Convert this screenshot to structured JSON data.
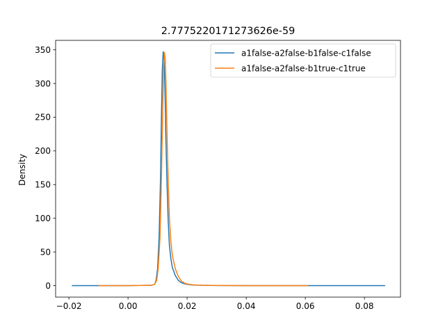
{
  "chart_data": {
    "type": "line",
    "title": "2.7775220171273626e-59",
    "xlabel": "",
    "ylabel": "Density",
    "xlim": [
      -0.0245,
      0.0922
    ],
    "ylim": [
      -17,
      364
    ],
    "xticks": [
      {
        "value": -0.02,
        "label": "−0.02"
      },
      {
        "value": 0.0,
        "label": "0.00"
      },
      {
        "value": 0.02,
        "label": "0.02"
      },
      {
        "value": 0.04,
        "label": "0.04"
      },
      {
        "value": 0.06,
        "label": "0.06"
      },
      {
        "value": 0.08,
        "label": "0.08"
      }
    ],
    "yticks": [
      {
        "value": 0,
        "label": "0"
      },
      {
        "value": 50,
        "label": "50"
      },
      {
        "value": 100,
        "label": "100"
      },
      {
        "value": 150,
        "label": "150"
      },
      {
        "value": 200,
        "label": "200"
      },
      {
        "value": 250,
        "label": "250"
      },
      {
        "value": 300,
        "label": "300"
      },
      {
        "value": 350,
        "label": "350"
      }
    ],
    "grid": false,
    "legend_position": "upper-right",
    "series": [
      {
        "name": "a1false-a2false-b1false-c1false",
        "color": "#1f77b4",
        "points": [
          [
            -0.019,
            0
          ],
          [
            0.0,
            0
          ],
          [
            0.008,
            0.5
          ],
          [
            0.009,
            2
          ],
          [
            0.0095,
            8
          ],
          [
            0.01,
            25
          ],
          [
            0.0105,
            70
          ],
          [
            0.011,
            160
          ],
          [
            0.0113,
            250
          ],
          [
            0.0116,
            320
          ],
          [
            0.0119,
            347
          ],
          [
            0.0122,
            335
          ],
          [
            0.0125,
            290
          ],
          [
            0.0128,
            220
          ],
          [
            0.0132,
            150
          ],
          [
            0.0136,
            95
          ],
          [
            0.014,
            60
          ],
          [
            0.0145,
            40
          ],
          [
            0.015,
            27
          ],
          [
            0.016,
            15
          ],
          [
            0.017,
            8
          ],
          [
            0.018,
            4.5
          ],
          [
            0.019,
            3
          ],
          [
            0.02,
            2
          ],
          [
            0.022,
            1
          ],
          [
            0.025,
            0.5
          ],
          [
            0.03,
            0.2
          ],
          [
            0.04,
            0.1
          ],
          [
            0.06,
            0.05
          ],
          [
            0.087,
            0
          ]
        ]
      },
      {
        "name": "a1false-a2false-b1true-c1true",
        "color": "#ff7f0e",
        "points": [
          [
            -0.01,
            0
          ],
          [
            0.0,
            0
          ],
          [
            0.008,
            0.5
          ],
          [
            0.009,
            2
          ],
          [
            0.0097,
            8
          ],
          [
            0.0102,
            25
          ],
          [
            0.0108,
            70
          ],
          [
            0.0113,
            160
          ],
          [
            0.0117,
            250
          ],
          [
            0.012,
            320
          ],
          [
            0.0123,
            346
          ],
          [
            0.0126,
            335
          ],
          [
            0.0129,
            290
          ],
          [
            0.0132,
            225
          ],
          [
            0.0136,
            155
          ],
          [
            0.014,
            100
          ],
          [
            0.0145,
            65
          ],
          [
            0.015,
            45
          ],
          [
            0.016,
            25
          ],
          [
            0.017,
            14
          ],
          [
            0.018,
            7
          ],
          [
            0.019,
            4
          ],
          [
            0.02,
            2.5
          ],
          [
            0.022,
            1.2
          ],
          [
            0.025,
            0.6
          ],
          [
            0.03,
            0.3
          ],
          [
            0.04,
            0.1
          ],
          [
            0.061,
            0
          ]
        ]
      }
    ]
  }
}
